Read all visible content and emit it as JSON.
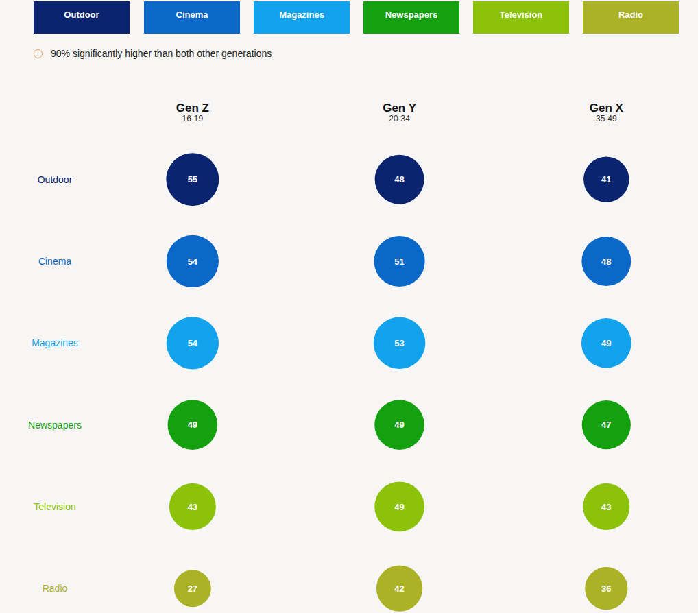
{
  "chart_data": {
    "type": "bubble",
    "note": "90% significantly higher than both other generations",
    "categories": [
      "Gen Z",
      "Gen Y",
      "Gen X"
    ],
    "category_subtitles": [
      "16-19",
      "20-34",
      "35-49"
    ],
    "series": [
      {
        "name": "Outdoor",
        "color": "#0b2470",
        "values": [
          55,
          48,
          41
        ]
      },
      {
        "name": "Cinema",
        "color": "#0a68c8",
        "values": [
          54,
          51,
          48
        ]
      },
      {
        "name": "Magazines",
        "color": "#12a3ec",
        "values": [
          54,
          53,
          49
        ]
      },
      {
        "name": "Newspapers",
        "color": "#15a010",
        "values": [
          49,
          49,
          47
        ]
      },
      {
        "name": "Television",
        "color": "#8cc30a",
        "values": [
          43,
          49,
          43
        ]
      },
      {
        "name": "Radio",
        "color": "#abb225",
        "values": [
          27,
          42,
          36
        ]
      }
    ],
    "legend": "top",
    "data_labels": true
  }
}
